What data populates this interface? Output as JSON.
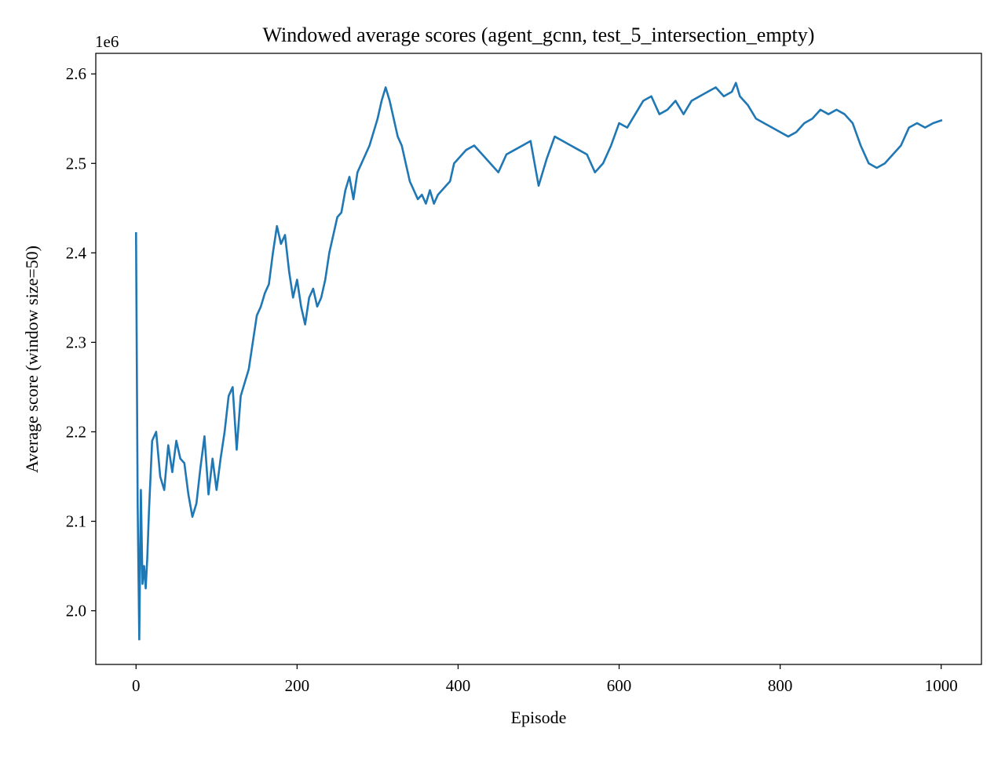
{
  "chart_data": {
    "type": "line",
    "title": "Windowed average scores (agent_gcnn, test_5_intersection_empty)",
    "xlabel": "Episode",
    "ylabel": "Average score (window size=50)",
    "y_offset_label": "1e6",
    "y_scale_multiplier": 1000000,
    "xlim": [
      -50,
      1050
    ],
    "ylim": [
      1.94,
      2.623
    ],
    "xticks": [
      0,
      200,
      400,
      600,
      800,
      1000
    ],
    "xtick_labels": [
      "0",
      "200",
      "400",
      "600",
      "800",
      "1000"
    ],
    "yticks": [
      2.0,
      2.1,
      2.2,
      2.3,
      2.4,
      2.5,
      2.6
    ],
    "ytick_labels": [
      "2.0",
      "2.1",
      "2.2",
      "2.3",
      "2.4",
      "2.5",
      "2.6"
    ],
    "grid": false,
    "series": [
      {
        "color": "#1f77b4",
        "x": [
          0,
          2,
          4,
          6,
          8,
          10,
          12,
          14,
          16,
          18,
          20,
          25,
          30,
          35,
          40,
          45,
          50,
          55,
          60,
          65,
          70,
          75,
          80,
          85,
          90,
          95,
          100,
          105,
          110,
          115,
          120,
          125,
          130,
          135,
          140,
          145,
          150,
          155,
          160,
          165,
          170,
          175,
          180,
          185,
          190,
          195,
          200,
          205,
          210,
          215,
          220,
          225,
          230,
          235,
          240,
          245,
          250,
          255,
          260,
          265,
          270,
          275,
          280,
          285,
          290,
          295,
          300,
          305,
          310,
          315,
          320,
          325,
          330,
          335,
          340,
          345,
          350,
          355,
          360,
          365,
          370,
          375,
          380,
          385,
          390,
          395,
          400,
          410,
          420,
          430,
          440,
          450,
          460,
          470,
          480,
          490,
          500,
          510,
          520,
          530,
          540,
          550,
          560,
          570,
          580,
          590,
          600,
          610,
          620,
          630,
          640,
          650,
          660,
          670,
          680,
          690,
          700,
          710,
          720,
          730,
          740,
          745,
          750,
          760,
          770,
          780,
          790,
          800,
          810,
          820,
          830,
          840,
          850,
          860,
          870,
          880,
          890,
          900,
          910,
          920,
          930,
          940,
          950,
          960,
          970,
          980,
          990,
          1000
        ],
        "y": [
          2.422,
          2.12,
          1.968,
          2.135,
          2.03,
          2.05,
          2.025,
          2.06,
          2.11,
          2.15,
          2.19,
          2.2,
          2.15,
          2.135,
          2.185,
          2.155,
          2.19,
          2.17,
          2.165,
          2.13,
          2.105,
          2.12,
          2.16,
          2.195,
          2.13,
          2.17,
          2.135,
          2.17,
          2.2,
          2.24,
          2.25,
          2.18,
          2.24,
          2.255,
          2.27,
          2.3,
          2.33,
          2.34,
          2.355,
          2.365,
          2.4,
          2.43,
          2.41,
          2.42,
          2.38,
          2.35,
          2.37,
          2.34,
          2.32,
          2.35,
          2.36,
          2.34,
          2.35,
          2.37,
          2.4,
          2.42,
          2.44,
          2.445,
          2.47,
          2.485,
          2.46,
          2.49,
          2.5,
          2.51,
          2.52,
          2.535,
          2.55,
          2.57,
          2.585,
          2.57,
          2.55,
          2.53,
          2.52,
          2.5,
          2.48,
          2.47,
          2.46,
          2.465,
          2.455,
          2.47,
          2.455,
          2.465,
          2.47,
          2.475,
          2.48,
          2.5,
          2.505,
          2.515,
          2.52,
          2.51,
          2.5,
          2.49,
          2.51,
          2.515,
          2.52,
          2.525,
          2.475,
          2.505,
          2.53,
          2.525,
          2.52,
          2.515,
          2.51,
          2.49,
          2.5,
          2.52,
          2.545,
          2.54,
          2.555,
          2.57,
          2.575,
          2.555,
          2.56,
          2.57,
          2.555,
          2.57,
          2.575,
          2.58,
          2.585,
          2.575,
          2.58,
          2.59,
          2.575,
          2.565,
          2.55,
          2.545,
          2.54,
          2.535,
          2.53,
          2.535,
          2.545,
          2.55,
          2.56,
          2.555,
          2.56,
          2.555,
          2.545,
          2.52,
          2.5,
          2.495,
          2.5,
          2.51,
          2.52,
          2.54,
          2.545,
          2.54,
          2.545,
          2.548
        ]
      }
    ]
  }
}
